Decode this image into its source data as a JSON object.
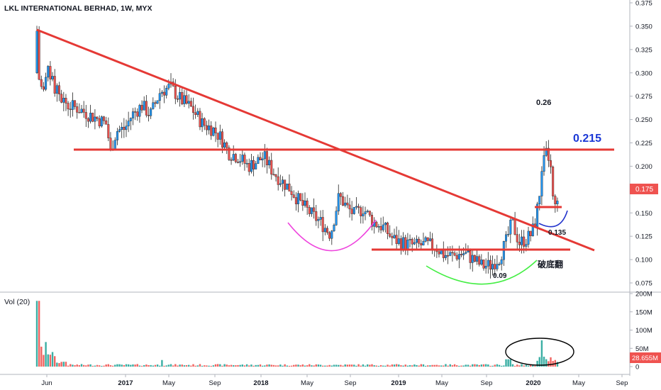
{
  "header": {
    "title": "LKL INTERNATIONAL BERHAD, 1W, MYX"
  },
  "volume_panel": {
    "label": "Vol (20)"
  },
  "colors": {
    "up": "#2196f3",
    "down": "#ef5350",
    "vol_up": "#26a69a",
    "vol_down": "#ef5350",
    "trend": "#e53935",
    "price_badge": "#ef5350",
    "blue_text": "#1a37d6",
    "magenta": "#ee44dd",
    "green_curve": "#44ee44",
    "navy_curve": "#2233cc"
  },
  "chart_data": {
    "type": "candlestick",
    "title": "LKL INTERNATIONAL BERHAD, 1W, MYX",
    "price_axis": {
      "ticks": [
        "0.375",
        "0.350",
        "0.325",
        "0.300",
        "0.275",
        "0.250",
        "0.225",
        "0.200",
        "0.175",
        "0.150",
        "0.125",
        "0.100",
        "0.075"
      ],
      "ylim": [
        0.0625,
        0.3825
      ]
    },
    "volume_axis": {
      "ticks": [
        "200M",
        "150M",
        "100M",
        "50M",
        "0"
      ]
    },
    "x_ticks": [
      "Jun",
      "2017",
      "May",
      "Sep",
      "2018",
      "May",
      "Sep",
      "2019",
      "May",
      "Sep",
      "2020",
      "May",
      "Sep"
    ],
    "last_price": "0.175",
    "last_volume": "28.655M",
    "annotations": {
      "peak_label": "0.26",
      "resistance_label": "0.215",
      "low_label": "0.09",
      "pullback_label": "0.135",
      "chinese_note": "破底翻"
    },
    "key_values": {
      "peak": 0.26,
      "resistance": 0.215,
      "support": 0.11,
      "low": 0.09,
      "pullback": 0.135,
      "start_high": 0.345,
      "close": 0.175
    }
  }
}
